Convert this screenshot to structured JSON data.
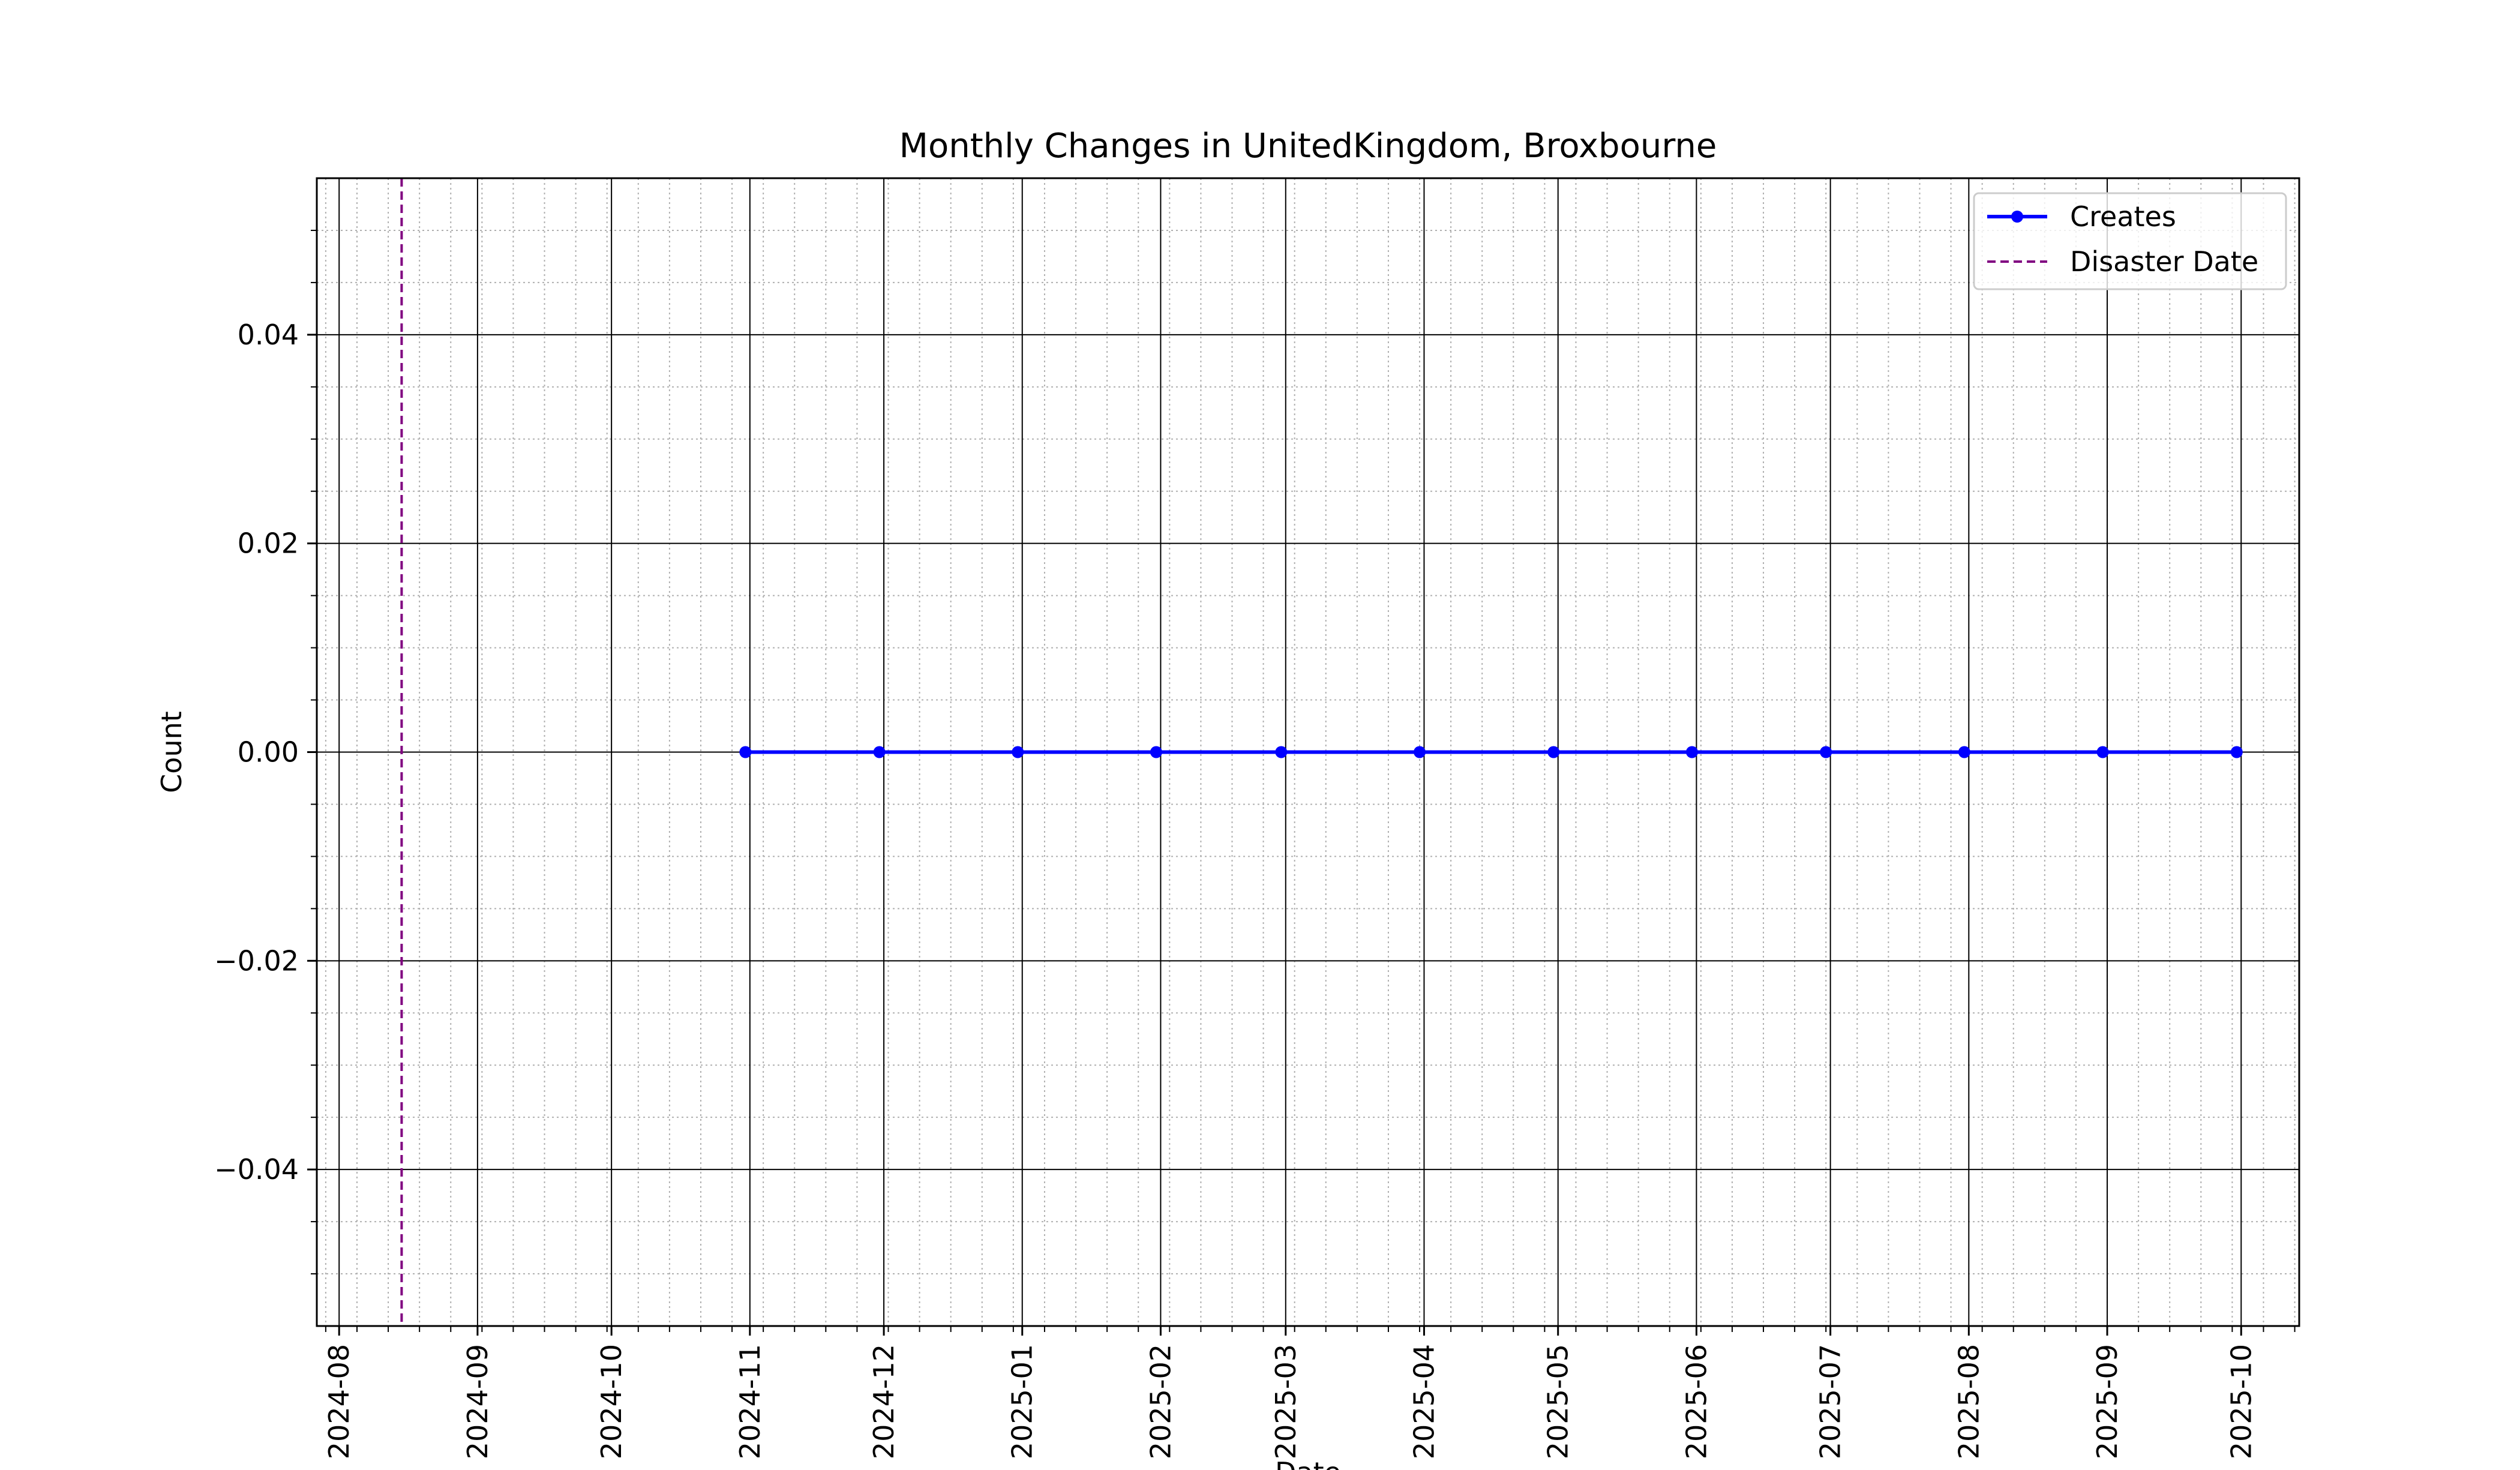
{
  "chart_data": {
    "type": "line",
    "title": "Monthly Changes in UnitedKingdom, Broxbourne",
    "xlabel": "Date",
    "ylabel": "Count",
    "xlim": [
      "2024-07-27",
      "2025-10-14"
    ],
    "ylim": [
      -0.055,
      0.055
    ],
    "x_ticks": [
      "2024-08",
      "2024-09",
      "2024-10",
      "2024-11",
      "2024-12",
      "2025-01",
      "2025-02",
      "2025-03",
      "2025-04",
      "2025-05",
      "2025-06",
      "2025-07",
      "2025-08",
      "2025-09",
      "2025-10"
    ],
    "y_ticks": [
      {
        "value": 0.04,
        "label": "0.04"
      },
      {
        "value": 0.02,
        "label": "0.02"
      },
      {
        "value": 0.0,
        "label": "0.00"
      },
      {
        "value": -0.02,
        "label": "−0.02"
      },
      {
        "value": -0.04,
        "label": "−0.04"
      }
    ],
    "grid": true,
    "minor_grid": true,
    "legend_position": "top-right",
    "series": [
      {
        "name": "Creates",
        "color": "#0000ff",
        "marker": "circle",
        "x": [
          "2024-10-31",
          "2024-11-30",
          "2024-12-31",
          "2025-01-31",
          "2025-02-28",
          "2025-03-31",
          "2025-04-30",
          "2025-05-31",
          "2025-06-30",
          "2025-07-31",
          "2025-08-31",
          "2025-09-30"
        ],
        "y": [
          0,
          0,
          0,
          0,
          0,
          0,
          0,
          0,
          0,
          0,
          0,
          0
        ]
      }
    ],
    "vlines": [
      {
        "name": "Disaster Date",
        "x": "2024-08-15",
        "color": "#800080",
        "style": "dashed"
      }
    ]
  }
}
